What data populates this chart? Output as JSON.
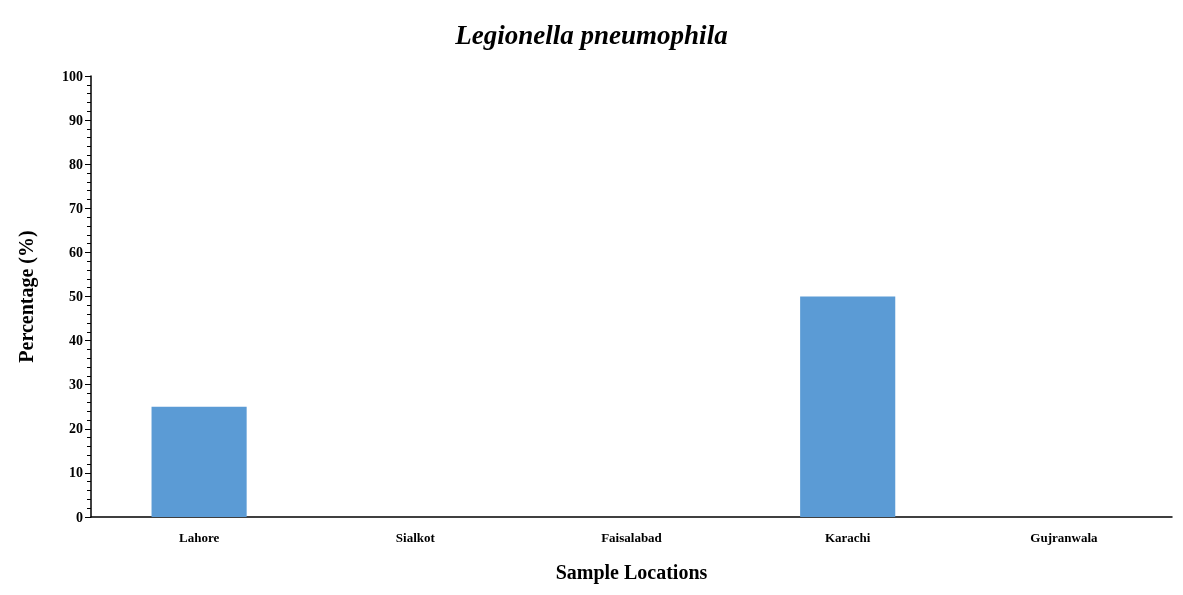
{
  "chart_data": {
    "type": "bar",
    "title": "Legionella pneumophila",
    "xlabel": "Sample Locations",
    "ylabel": "Percentage (%)",
    "categories": [
      "Lahore",
      "Sialkot",
      "Faisalabad",
      "Karachi",
      "Gujranwala"
    ],
    "values": [
      25,
      0,
      0,
      50,
      0
    ],
    "color": "#5b9bd5",
    "ylim": [
      0,
      100
    ],
    "yticks": [
      0,
      10,
      20,
      30,
      40,
      50,
      60,
      70,
      80,
      90,
      100
    ],
    "grid": false
  }
}
